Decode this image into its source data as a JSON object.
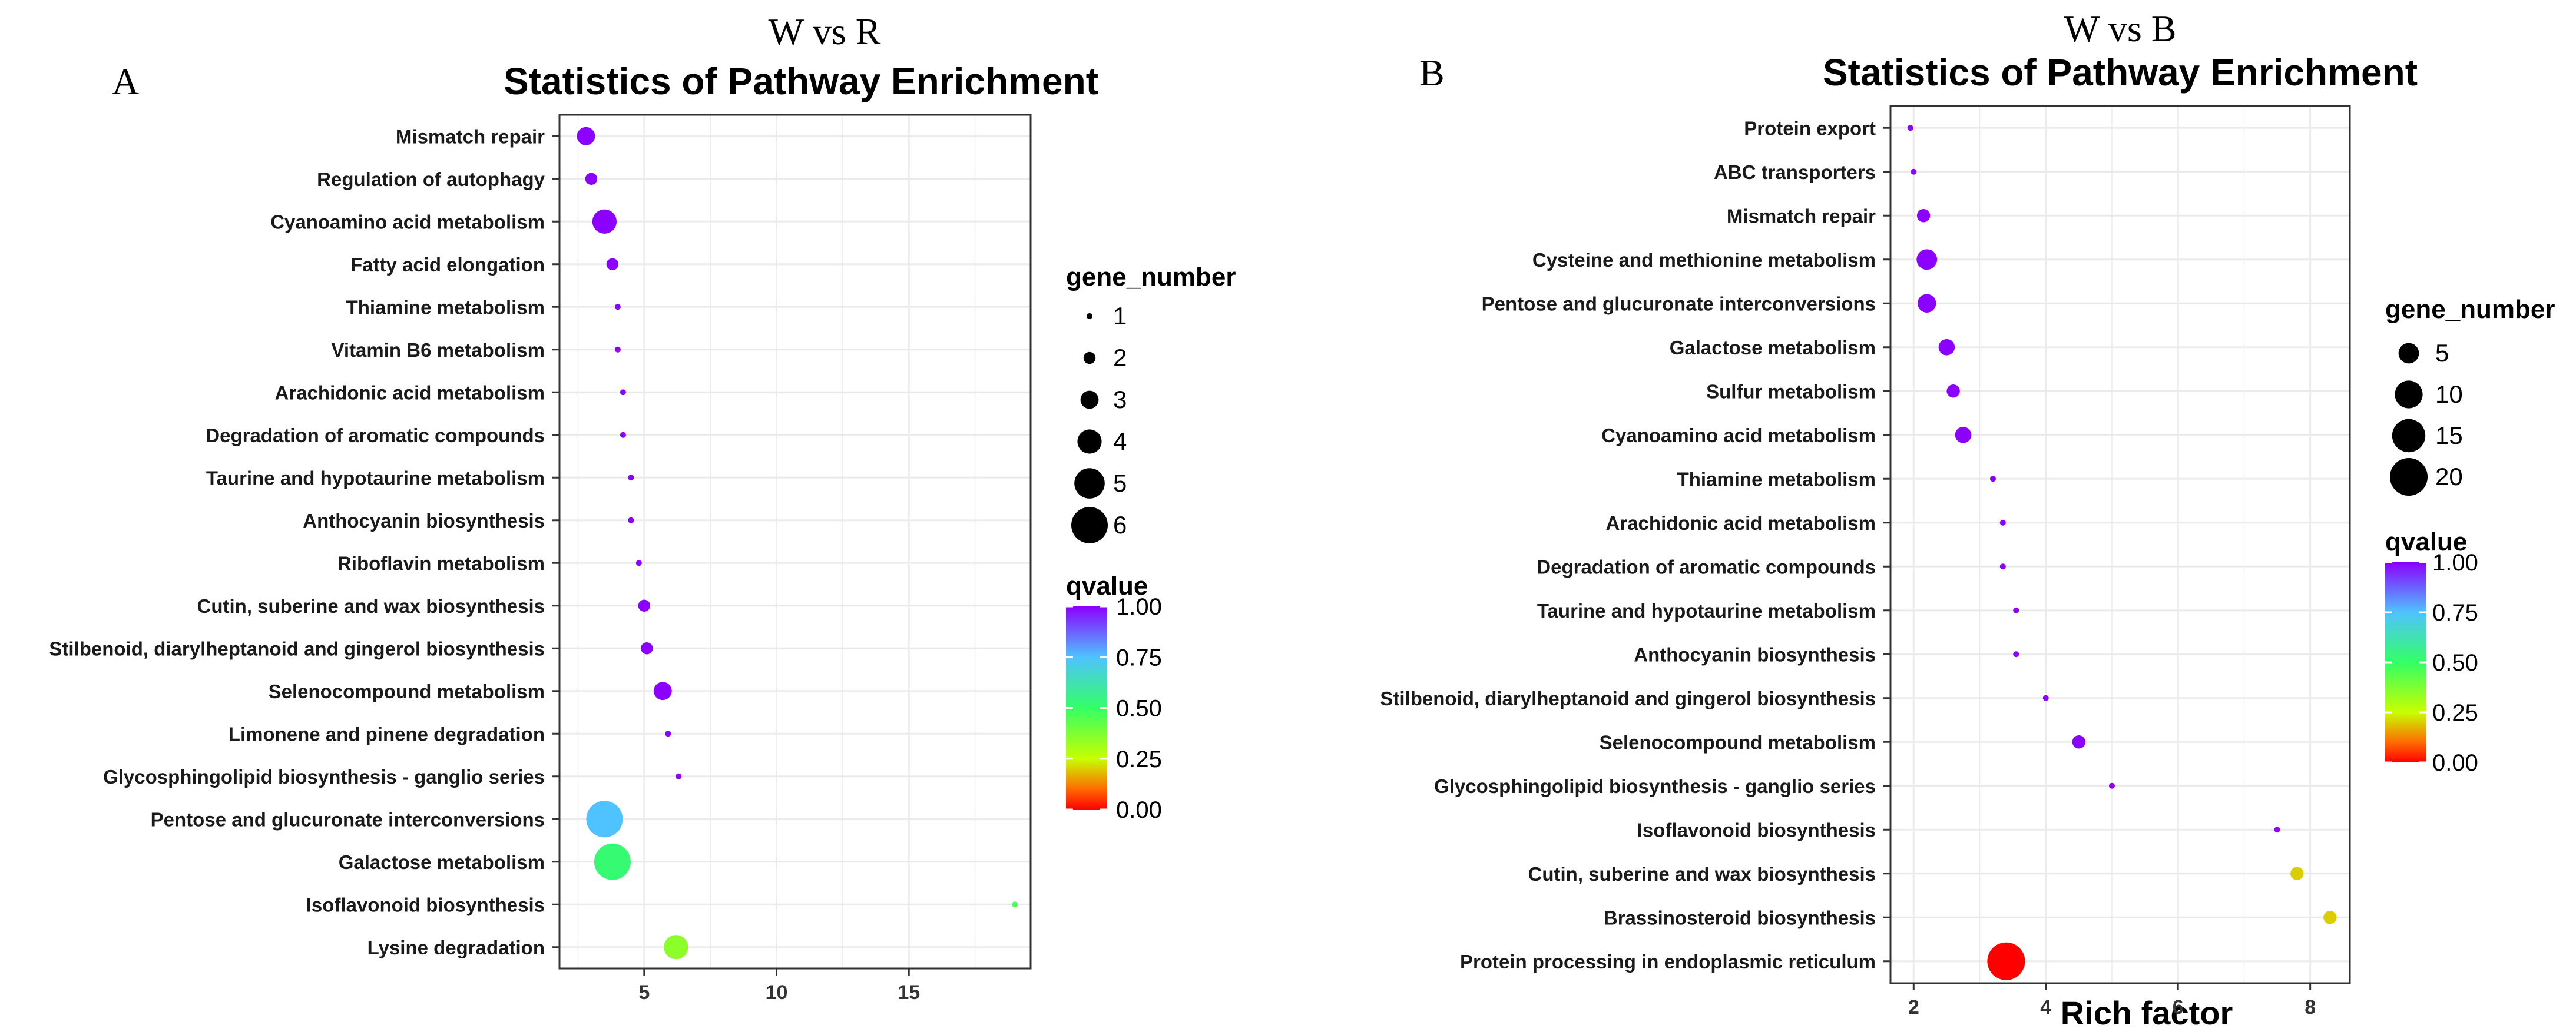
{
  "colors": {
    "scale_top": "#8b00ff",
    "scale_75": "#4fc3ff",
    "scale_50": "#33ff66",
    "scale_25": "#c8ff00",
    "scale_bottom": "#ff0000",
    "grid": "#ebebeb",
    "panel_border": "#333333"
  },
  "chart_data": [
    {
      "type": "scatter",
      "panel_letter": "A",
      "comparison": "W vs R",
      "title": "Statistics of Pathway Enrichment",
      "xlabel": "",
      "ylabel": "",
      "xlim": [
        1.8,
        19.6
      ],
      "x_ticks": [
        5,
        10,
        15
      ],
      "grid": true,
      "size_legend": {
        "title": "gene_number",
        "values": [
          1,
          2,
          3,
          4,
          5,
          6
        ]
      },
      "color_legend": {
        "title": "qvalue",
        "ticks": [
          "1.00",
          "0.75",
          "0.50",
          "0.25",
          "0.00"
        ]
      },
      "points": [
        {
          "pathway": "Mismatch repair",
          "rich_factor": 2.8,
          "gene_number": 3,
          "qvalue": 1.0
        },
        {
          "pathway": "Regulation of autophagy",
          "rich_factor": 3.0,
          "gene_number": 2,
          "qvalue": 1.0
        },
        {
          "pathway": "Cyanoamino acid metabolism",
          "rich_factor": 3.5,
          "gene_number": 4,
          "qvalue": 1.0
        },
        {
          "pathway": "Fatty acid elongation",
          "rich_factor": 3.8,
          "gene_number": 2,
          "qvalue": 1.0
        },
        {
          "pathway": "Thiamine metabolism",
          "rich_factor": 4.0,
          "gene_number": 1,
          "qvalue": 1.0
        },
        {
          "pathway": "Vitamin B6 metabolism",
          "rich_factor": 4.0,
          "gene_number": 1,
          "qvalue": 1.0
        },
        {
          "pathway": "Arachidonic acid metabolism",
          "rich_factor": 4.2,
          "gene_number": 1,
          "qvalue": 1.0
        },
        {
          "pathway": "Degradation of aromatic compounds",
          "rich_factor": 4.2,
          "gene_number": 1,
          "qvalue": 1.0
        },
        {
          "pathway": "Taurine and hypotaurine metabolism",
          "rich_factor": 4.5,
          "gene_number": 1,
          "qvalue": 1.0
        },
        {
          "pathway": "Anthocyanin biosynthesis",
          "rich_factor": 4.5,
          "gene_number": 1,
          "qvalue": 1.0
        },
        {
          "pathway": "Riboflavin metabolism",
          "rich_factor": 4.8,
          "gene_number": 1,
          "qvalue": 1.0
        },
        {
          "pathway": "Cutin, suberine and wax biosynthesis",
          "rich_factor": 5.0,
          "gene_number": 2,
          "qvalue": 1.0
        },
        {
          "pathway": "Stilbenoid, diarylheptanoid and gingerol biosynthesis",
          "rich_factor": 5.1,
          "gene_number": 2,
          "qvalue": 1.0
        },
        {
          "pathway": "Selenocompound metabolism",
          "rich_factor": 5.7,
          "gene_number": 3,
          "qvalue": 1.0
        },
        {
          "pathway": "Limonene and pinene degradation",
          "rich_factor": 5.9,
          "gene_number": 1,
          "qvalue": 1.0
        },
        {
          "pathway": "Glycosphingolipid biosynthesis - ganglio series",
          "rich_factor": 6.3,
          "gene_number": 1,
          "qvalue": 1.0
        },
        {
          "pathway": "Pentose and glucuronate interconversions",
          "rich_factor": 3.5,
          "gene_number": 6,
          "qvalue": 0.75
        },
        {
          "pathway": "Galactose metabolism",
          "rich_factor": 3.8,
          "gene_number": 6,
          "qvalue": 0.52
        },
        {
          "pathway": "Isoflavonoid biosynthesis",
          "rich_factor": 19.0,
          "gene_number": 1,
          "qvalue": 0.45
        },
        {
          "pathway": "Lysine degradation",
          "rich_factor": 6.2,
          "gene_number": 4,
          "qvalue": 0.35
        }
      ]
    },
    {
      "type": "scatter",
      "panel_letter": "B",
      "comparison": "W vs B",
      "title": "Statistics of Pathway Enrichment",
      "xlabel": "Rich factor",
      "ylabel": "",
      "xlim": [
        1.65,
        8.6
      ],
      "x_ticks": [
        2,
        4,
        6,
        8
      ],
      "grid": true,
      "size_legend": {
        "title": "gene_number",
        "values": [
          5,
          10,
          15,
          20
        ]
      },
      "color_legend": {
        "title": "qvalue",
        "ticks": [
          "1.00",
          "0.75",
          "0.50",
          "0.25",
          "0.00"
        ]
      },
      "points": [
        {
          "pathway": "Protein export",
          "rich_factor": 1.95,
          "gene_number": 1,
          "qvalue": 1.0
        },
        {
          "pathway": "ABC transporters",
          "rich_factor": 2.0,
          "gene_number": 1,
          "qvalue": 1.0
        },
        {
          "pathway": "Mismatch repair",
          "rich_factor": 2.15,
          "gene_number": 2,
          "qvalue": 1.0
        },
        {
          "pathway": "Cysteine and methionine metabolism",
          "rich_factor": 2.2,
          "gene_number": 5,
          "qvalue": 1.0
        },
        {
          "pathway": "Pentose and glucuronate interconversions",
          "rich_factor": 2.2,
          "gene_number": 4,
          "qvalue": 1.0
        },
        {
          "pathway": "Galactose metabolism",
          "rich_factor": 2.5,
          "gene_number": 3,
          "qvalue": 1.0
        },
        {
          "pathway": "Sulfur metabolism",
          "rich_factor": 2.6,
          "gene_number": 2,
          "qvalue": 1.0
        },
        {
          "pathway": "Cyanoamino acid metabolism",
          "rich_factor": 2.75,
          "gene_number": 3,
          "qvalue": 1.0
        },
        {
          "pathway": "Thiamine metabolism",
          "rich_factor": 3.2,
          "gene_number": 1,
          "qvalue": 1.0
        },
        {
          "pathway": "Arachidonic acid metabolism",
          "rich_factor": 3.35,
          "gene_number": 1,
          "qvalue": 1.0
        },
        {
          "pathway": "Degradation of aromatic compounds",
          "rich_factor": 3.35,
          "gene_number": 1,
          "qvalue": 1.0
        },
        {
          "pathway": "Taurine and hypotaurine metabolism",
          "rich_factor": 3.55,
          "gene_number": 1,
          "qvalue": 1.0
        },
        {
          "pathway": "Anthocyanin biosynthesis",
          "rich_factor": 3.55,
          "gene_number": 1,
          "qvalue": 1.0
        },
        {
          "pathway": "Stilbenoid, diarylheptanoid and gingerol biosynthesis",
          "rich_factor": 4.0,
          "gene_number": 1,
          "qvalue": 1.0
        },
        {
          "pathway": "Selenocompound metabolism",
          "rich_factor": 4.5,
          "gene_number": 2,
          "qvalue": 1.0
        },
        {
          "pathway": "Glycosphingolipid biosynthesis - ganglio series",
          "rich_factor": 5.0,
          "gene_number": 1,
          "qvalue": 1.0
        },
        {
          "pathway": "Isoflavonoid biosynthesis",
          "rich_factor": 7.5,
          "gene_number": 1,
          "qvalue": 1.0
        },
        {
          "pathway": "Cutin, suberine and wax biosynthesis",
          "rich_factor": 7.8,
          "gene_number": 2,
          "qvalue": 0.2
        },
        {
          "pathway": "Brassinosteroid biosynthesis",
          "rich_factor": 8.3,
          "gene_number": 2,
          "qvalue": 0.2
        },
        {
          "pathway": "Protein processing in endoplasmic reticulum",
          "rich_factor": 3.4,
          "gene_number": 20,
          "qvalue": 0.0
        }
      ]
    }
  ]
}
